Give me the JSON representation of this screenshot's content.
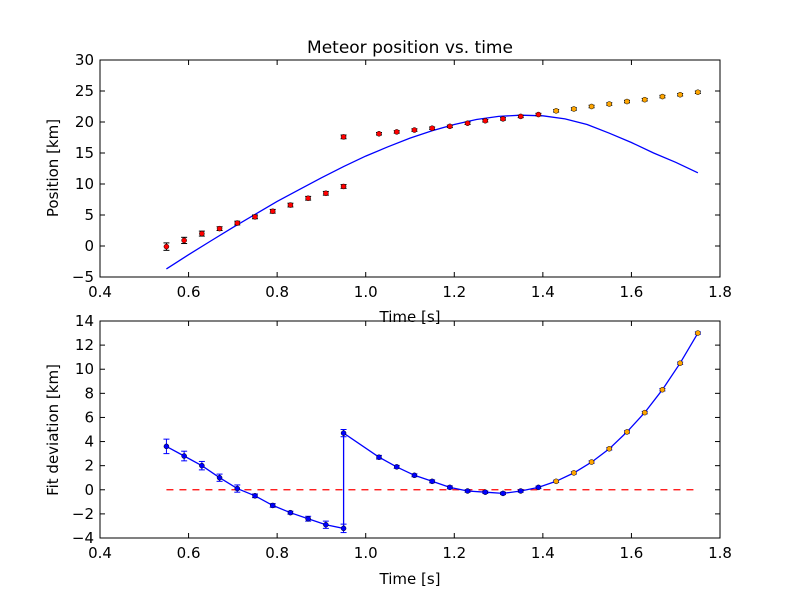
{
  "chart_data": [
    {
      "type": "scatter",
      "title": "Meteor position vs. time",
      "xlabel": "Time [s]",
      "ylabel": "Position [km]",
      "xlim": [
        0.4,
        1.8
      ],
      "ylim": [
        -5,
        30
      ],
      "xticks": [
        "0.4",
        "0.6",
        "0.8",
        "1.0",
        "1.2",
        "1.4",
        "1.6",
        "1.8"
      ],
      "yticks": [
        "−5",
        "0",
        "5",
        "10",
        "15",
        "20",
        "25",
        "30"
      ],
      "grid": false,
      "colors": {
        "observed": "#ff0000",
        "extrapolated": "#ffa500",
        "fit": "#0000ff"
      },
      "series": [
        {
          "marker": "errorbar-point",
          "x": [
            0.55,
            0.59,
            0.63,
            0.67,
            0.71,
            0.75,
            0.79,
            0.83,
            0.87,
            0.91,
            0.95,
            0.95,
            1.03,
            1.07,
            1.11,
            1.15,
            1.19,
            1.23,
            1.27,
            1.31,
            1.35,
            1.39
          ],
          "y": [
            -0.1,
            0.9,
            2.0,
            2.8,
            3.7,
            4.7,
            5.6,
            6.6,
            7.7,
            8.5,
            9.6,
            17.6,
            18.1,
            18.4,
            18.7,
            19.0,
            19.3,
            19.8,
            20.2,
            20.5,
            20.9,
            21.2
          ],
          "yerr": [
            0.6,
            0.5,
            0.4,
            0.3,
            0.3,
            0.3,
            0.3,
            0.3,
            0.3,
            0.3,
            0.3,
            0.3,
            0.2,
            0.2,
            0.2,
            0.2,
            0.2,
            0.2,
            0.2,
            0.2,
            0.2,
            0.2
          ]
        },
        {
          "marker": "errorbar-point",
          "x": [
            1.43,
            1.47,
            1.51,
            1.55,
            1.59,
            1.63,
            1.67,
            1.71,
            1.75
          ],
          "y": [
            21.8,
            22.1,
            22.5,
            22.9,
            23.3,
            23.6,
            24.1,
            24.4,
            24.8
          ],
          "yerr": [
            0.2,
            0.2,
            0.2,
            0.2,
            0.2,
            0.2,
            0.2,
            0.2,
            0.2
          ]
        },
        {
          "marker": "line",
          "x": [
            0.55,
            0.6,
            0.65,
            0.7,
            0.75,
            0.8,
            0.85,
            0.9,
            0.95,
            1.0,
            1.05,
            1.1,
            1.15,
            1.2,
            1.25,
            1.3,
            1.35,
            1.4,
            1.45,
            1.5,
            1.55,
            1.6,
            1.65,
            1.7,
            1.75
          ],
          "y": [
            -3.7,
            -1.4,
            0.8,
            3.0,
            5.1,
            7.2,
            9.1,
            11.0,
            12.8,
            14.5,
            16.0,
            17.4,
            18.6,
            19.6,
            20.4,
            20.9,
            21.1,
            21.0,
            20.5,
            19.6,
            18.2,
            16.7,
            15.0,
            13.5,
            11.8
          ]
        }
      ]
    },
    {
      "type": "line",
      "title": "",
      "xlabel": "Time [s]",
      "ylabel": "Fit deviation [km]",
      "xlim": [
        0.4,
        1.8
      ],
      "ylim": [
        -4,
        14
      ],
      "xticks": [
        "0.4",
        "0.6",
        "0.8",
        "1.0",
        "1.2",
        "1.4",
        "1.6",
        "1.8"
      ],
      "yticks": [
        "−4",
        "−2",
        "0",
        "2",
        "4",
        "6",
        "8",
        "10",
        "12",
        "14"
      ],
      "grid": false,
      "colors": {
        "deviation": "#0000ff",
        "extrapolated": "#ffa500",
        "zero": "#ff0000"
      },
      "series": [
        {
          "marker": "line-with-errorbars",
          "x": [
            0.55,
            0.59,
            0.63,
            0.67,
            0.71,
            0.75,
            0.79,
            0.83,
            0.87,
            0.91,
            0.95,
            0.95,
            1.03,
            1.07,
            1.11,
            1.15,
            1.19,
            1.23,
            1.27,
            1.31,
            1.35,
            1.39,
            1.43,
            1.47,
            1.51,
            1.55,
            1.59,
            1.63,
            1.67,
            1.71,
            1.75
          ],
          "y": [
            3.6,
            2.8,
            2.0,
            1.0,
            0.1,
            -0.5,
            -1.3,
            -1.9,
            -2.4,
            -2.9,
            -3.2,
            4.7,
            2.7,
            1.9,
            1.2,
            0.7,
            0.2,
            -0.1,
            -0.2,
            -0.3,
            -0.1,
            0.2,
            0.7,
            1.4,
            2.3,
            3.4,
            4.8,
            6.4,
            8.3,
            10.5,
            13.0
          ],
          "yerr": [
            0.6,
            0.4,
            0.35,
            0.3,
            0.3,
            0.15,
            0.15,
            0.12,
            0.2,
            0.3,
            0.35,
            0.3,
            0.15,
            0.12,
            0.12,
            0.12,
            0.12,
            0.1,
            0.1,
            0.1,
            0.1,
            0.1,
            0.1,
            0.1,
            0.1,
            0.1,
            0.1,
            0.1,
            0.1,
            0.1,
            0.1
          ],
          "extrapolated_from_index": 22
        },
        {
          "marker": "dashed-line",
          "x": [
            0.55,
            1.75
          ],
          "y": [
            0,
            0
          ]
        }
      ]
    }
  ]
}
